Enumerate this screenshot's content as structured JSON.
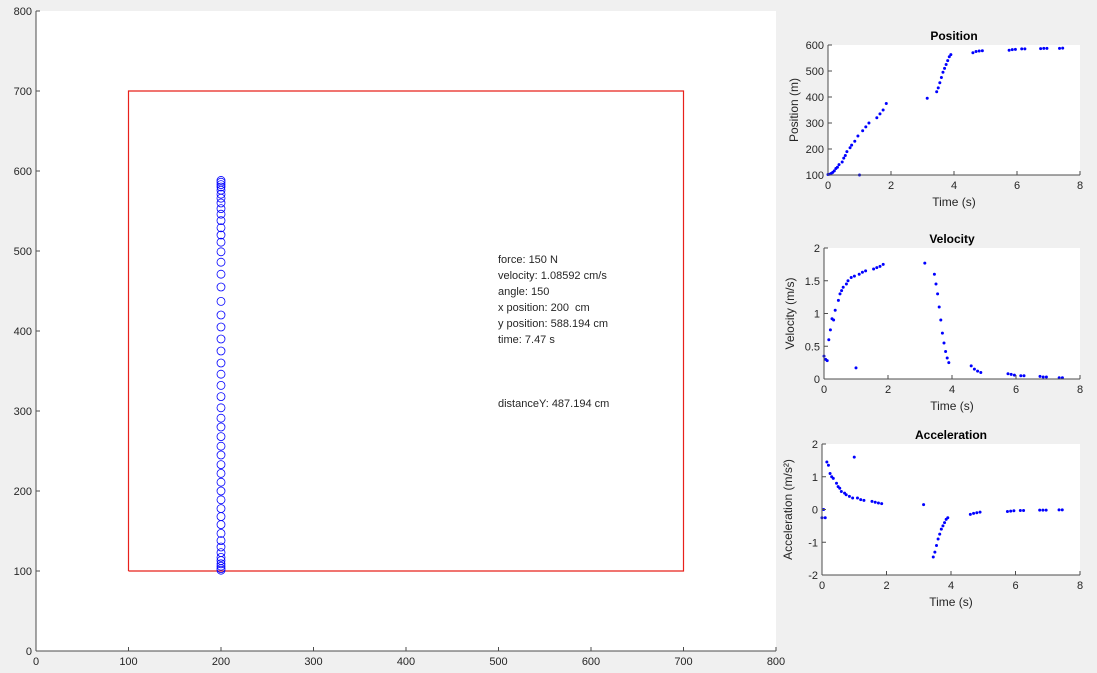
{
  "colors": {
    "figure_bg": "#f0f0f0",
    "axes_bg": "#ffffff",
    "box": "#e8211b",
    "markers": "#0000ff",
    "text": "#262626",
    "axis": "#4d4d4d"
  },
  "chart_data": [
    {
      "id": "main",
      "type": "scatter",
      "title": "",
      "xlabel": "",
      "ylabel": "",
      "xlim": [
        0,
        800
      ],
      "ylim": [
        0,
        800
      ],
      "xticks": [
        0,
        100,
        200,
        300,
        400,
        500,
        600,
        700,
        800
      ],
      "yticks": [
        0,
        100,
        200,
        300,
        400,
        500,
        600,
        700,
        800
      ],
      "xtick_labels": [
        "0",
        "100",
        "200",
        "300",
        "400",
        "500",
        "600",
        "700",
        "800"
      ],
      "ytick_labels": [
        "0",
        "100",
        "200",
        "300",
        "400",
        "500",
        "600",
        "700",
        "800"
      ],
      "marker": "open-circle",
      "box": {
        "x": [
          100,
          700,
          700,
          100,
          100
        ],
        "y": [
          100,
          100,
          700,
          700,
          100
        ]
      },
      "x": [
        200,
        200,
        200,
        200,
        200,
        200,
        200,
        200,
        200,
        200,
        200,
        200,
        200,
        200,
        200,
        200,
        200,
        200,
        200,
        200,
        200,
        200,
        200,
        200,
        200,
        200,
        200,
        200,
        200,
        200,
        200,
        200,
        200,
        200,
        200,
        200,
        200,
        200,
        200,
        200,
        200,
        200,
        200,
        200,
        200,
        200,
        200,
        200,
        200,
        200,
        200
      ],
      "y": [
        101,
        103,
        106,
        109,
        113,
        117,
        123,
        130,
        138,
        147,
        158,
        168,
        178,
        189,
        200,
        211,
        222,
        233,
        245,
        256,
        268,
        280,
        291,
        304,
        318,
        332,
        346,
        360,
        375,
        390,
        405,
        420,
        437,
        455,
        471,
        486,
        499,
        511,
        520,
        529,
        538,
        546,
        553,
        560,
        566,
        571,
        576,
        580,
        583,
        586,
        588.194
      ],
      "annotations": {
        "force": "force: 150 N",
        "velocity": "velocity: 1.08592 cm/s",
        "angle": "angle: 150",
        "xpos": "x position: 200  cm",
        "ypos": "y position: 588.194 cm",
        "time": "time: 7.47 s",
        "distance": "distanceY: 487.194 cm"
      }
    },
    {
      "id": "position",
      "type": "scatter",
      "title": "Position",
      "xlabel": "Time (s)",
      "ylabel": "Position (m)",
      "xlim": [
        0,
        8
      ],
      "ylim": [
        100,
        600
      ],
      "xticks": [
        0,
        2,
        4,
        6,
        8
      ],
      "yticks": [
        100,
        200,
        300,
        400,
        500,
        600
      ],
      "xtick_labels": [
        "0",
        "2",
        "4",
        "6",
        "8"
      ],
      "ytick_labels": [
        "100",
        "200",
        "300",
        "400",
        "500",
        "600"
      ],
      "x": [
        0,
        0.05,
        0.1,
        0.15,
        0.2,
        0.25,
        0.3,
        0.35,
        0.45,
        0.5,
        0.55,
        0.6,
        0.7,
        0.75,
        0.85,
        0.95,
        1.0,
        1.1,
        1.2,
        1.3,
        1.55,
        1.65,
        1.75,
        1.85,
        3.15,
        3.45,
        3.5,
        3.55,
        3.6,
        3.65,
        3.7,
        3.75,
        3.8,
        3.85,
        3.9,
        4.6,
        4.7,
        4.8,
        4.9,
        5.75,
        5.85,
        5.95,
        6.15,
        6.25,
        6.75,
        6.85,
        6.95,
        7.35,
        7.45
      ],
      "y": [
        102,
        103,
        106,
        110,
        116,
        125,
        130,
        140,
        150,
        165,
        175,
        190,
        205,
        215,
        230,
        250,
        100,
        270,
        285,
        300,
        320,
        335,
        350,
        375,
        395,
        420,
        435,
        455,
        475,
        495,
        510,
        525,
        540,
        555,
        563,
        570,
        575,
        577,
        578,
        580,
        582,
        583,
        585,
        585,
        586,
        587,
        587,
        587,
        588
      ]
    },
    {
      "id": "velocity",
      "type": "scatter",
      "title": "Velocity",
      "xlabel": "Time (s)",
      "ylabel": "Velocity (m/s)",
      "xlim": [
        0,
        8
      ],
      "ylim": [
        0,
        2
      ],
      "xticks": [
        0,
        2,
        4,
        6,
        8
      ],
      "yticks": [
        0,
        0.5,
        1,
        1.5,
        2
      ],
      "xtick_labels": [
        "0",
        "2",
        "4",
        "6",
        "8"
      ],
      "ytick_labels": [
        "0",
        "0.5",
        "1",
        "1.5",
        "2"
      ],
      "x": [
        0,
        0.05,
        0.1,
        0.15,
        0.2,
        0.25,
        0.3,
        0.35,
        0.45,
        0.5,
        0.55,
        0.6,
        0.7,
        0.75,
        0.85,
        0.95,
        1.0,
        1.1,
        1.2,
        1.3,
        1.55,
        1.65,
        1.75,
        1.85,
        3.15,
        3.45,
        3.5,
        3.55,
        3.6,
        3.65,
        3.7,
        3.75,
        3.8,
        3.85,
        3.9,
        4.6,
        4.7,
        4.8,
        4.9,
        5.75,
        5.85,
        5.95,
        6.15,
        6.25,
        6.75,
        6.85,
        6.95,
        7.35,
        7.45
      ],
      "y": [
        0.35,
        0.3,
        0.28,
        0.6,
        0.75,
        0.92,
        0.9,
        1.05,
        1.2,
        1.3,
        1.35,
        1.4,
        1.45,
        1.5,
        1.55,
        1.57,
        0.17,
        1.6,
        1.63,
        1.65,
        1.68,
        1.7,
        1.72,
        1.75,
        1.77,
        1.6,
        1.45,
        1.3,
        1.1,
        0.9,
        0.7,
        0.55,
        0.42,
        0.32,
        0.25,
        0.2,
        0.15,
        0.12,
        0.1,
        0.08,
        0.07,
        0.06,
        0.05,
        0.05,
        0.04,
        0.03,
        0.03,
        0.02,
        0.02
      ]
    },
    {
      "id": "acceleration",
      "type": "scatter",
      "title": "Acceleration",
      "xlabel": "Time (s)",
      "ylabel": "Acceleration (m/s²)",
      "xlim": [
        0,
        8
      ],
      "ylim": [
        -2,
        2
      ],
      "xticks": [
        0,
        2,
        4,
        6,
        8
      ],
      "yticks": [
        -2,
        -1,
        0,
        1,
        2
      ],
      "xtick_labels": [
        "0",
        "2",
        "4",
        "6",
        "8"
      ],
      "ytick_labels": [
        "-2",
        "-1",
        "0",
        "1",
        "2"
      ],
      "x": [
        0,
        0.05,
        0.1,
        0.15,
        0.2,
        0.25,
        0.3,
        0.35,
        0.45,
        0.5,
        0.55,
        0.6,
        0.7,
        0.75,
        0.85,
        0.95,
        1.0,
        1.1,
        1.2,
        1.3,
        1.55,
        1.65,
        1.75,
        1.85,
        3.15,
        3.45,
        3.5,
        3.55,
        3.6,
        3.65,
        3.7,
        3.75,
        3.8,
        3.85,
        3.9,
        4.6,
        4.7,
        4.8,
        4.9,
        5.75,
        5.85,
        5.95,
        6.15,
        6.25,
        6.75,
        6.85,
        6.95,
        7.35,
        7.45
      ],
      "y": [
        -0.25,
        0,
        -0.25,
        1.45,
        1.35,
        1.1,
        1.0,
        0.95,
        0.8,
        0.7,
        0.65,
        0.55,
        0.5,
        0.45,
        0.4,
        0.35,
        1.6,
        0.35,
        0.3,
        0.28,
        0.25,
        0.22,
        0.2,
        0.18,
        0.15,
        -1.45,
        -1.3,
        -1.1,
        -0.9,
        -0.75,
        -0.6,
        -0.5,
        -0.4,
        -0.3,
        -0.25,
        -0.15,
        -0.12,
        -0.1,
        -0.08,
        -0.06,
        -0.05,
        -0.04,
        -0.03,
        -0.03,
        -0.02,
        -0.02,
        -0.02,
        -0.01,
        -0.01
      ]
    }
  ]
}
